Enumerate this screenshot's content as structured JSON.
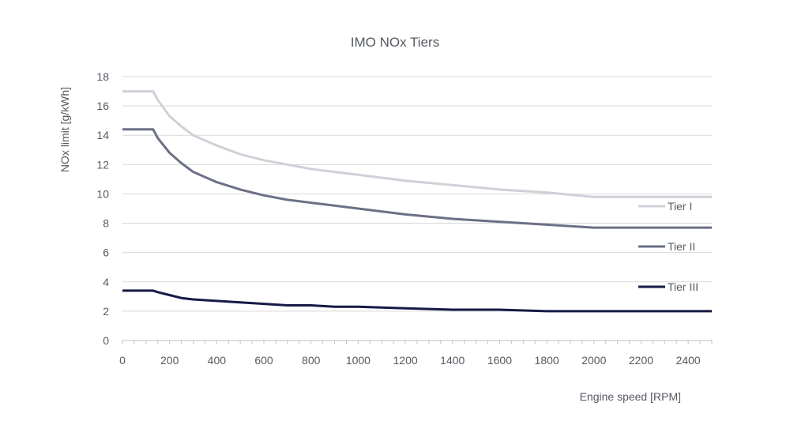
{
  "chart_data": {
    "type": "line",
    "title": "IMO NOx Tiers",
    "xlabel": "Engine speed [RPM]",
    "ylabel": "NOx limit [g/kWh]",
    "xlim": [
      0,
      2500
    ],
    "ylim": [
      0,
      18
    ],
    "xticks": [
      "0",
      "200",
      "400",
      "600",
      "800",
      "1000",
      "1200",
      "1400",
      "1600",
      "1800",
      "2000",
      "2200",
      "2400"
    ],
    "yticks": [
      "0",
      "2",
      "4",
      "6",
      "8",
      "10",
      "12",
      "14",
      "16",
      "18"
    ],
    "grid": true,
    "legend_position": "right",
    "series": [
      {
        "name": "Tier I",
        "color": "#d0d0d8",
        "x": [
          0,
          130,
          150,
          200,
          250,
          300,
          400,
          500,
          600,
          700,
          800,
          900,
          1000,
          1200,
          1400,
          1600,
          1800,
          1999,
          2000,
          2500
        ],
        "y": [
          17.0,
          17.0,
          16.4,
          15.3,
          14.6,
          14.0,
          13.3,
          12.7,
          12.3,
          12.0,
          11.7,
          11.5,
          11.3,
          10.9,
          10.6,
          10.3,
          10.1,
          9.8,
          9.8,
          9.8
        ]
      },
      {
        "name": "Tier II",
        "color": "#6b7085",
        "x": [
          0,
          130,
          150,
          200,
          250,
          300,
          400,
          500,
          600,
          700,
          800,
          900,
          1000,
          1200,
          1400,
          1600,
          1800,
          1999,
          2000,
          2500
        ],
        "y": [
          14.4,
          14.4,
          13.8,
          12.8,
          12.1,
          11.5,
          10.8,
          10.3,
          9.9,
          9.6,
          9.4,
          9.2,
          9.0,
          8.6,
          8.3,
          8.1,
          7.9,
          7.7,
          7.7,
          7.7
        ]
      },
      {
        "name": "Tier III",
        "color": "#161a45",
        "x": [
          0,
          130,
          150,
          200,
          250,
          300,
          400,
          500,
          600,
          700,
          800,
          900,
          1000,
          1200,
          1400,
          1600,
          1800,
          1999,
          2000,
          2500
        ],
        "y": [
          3.4,
          3.4,
          3.3,
          3.1,
          2.9,
          2.8,
          2.7,
          2.6,
          2.5,
          2.4,
          2.4,
          2.3,
          2.3,
          2.2,
          2.1,
          2.1,
          2.0,
          2.0,
          2.0,
          2.0
        ]
      }
    ]
  }
}
